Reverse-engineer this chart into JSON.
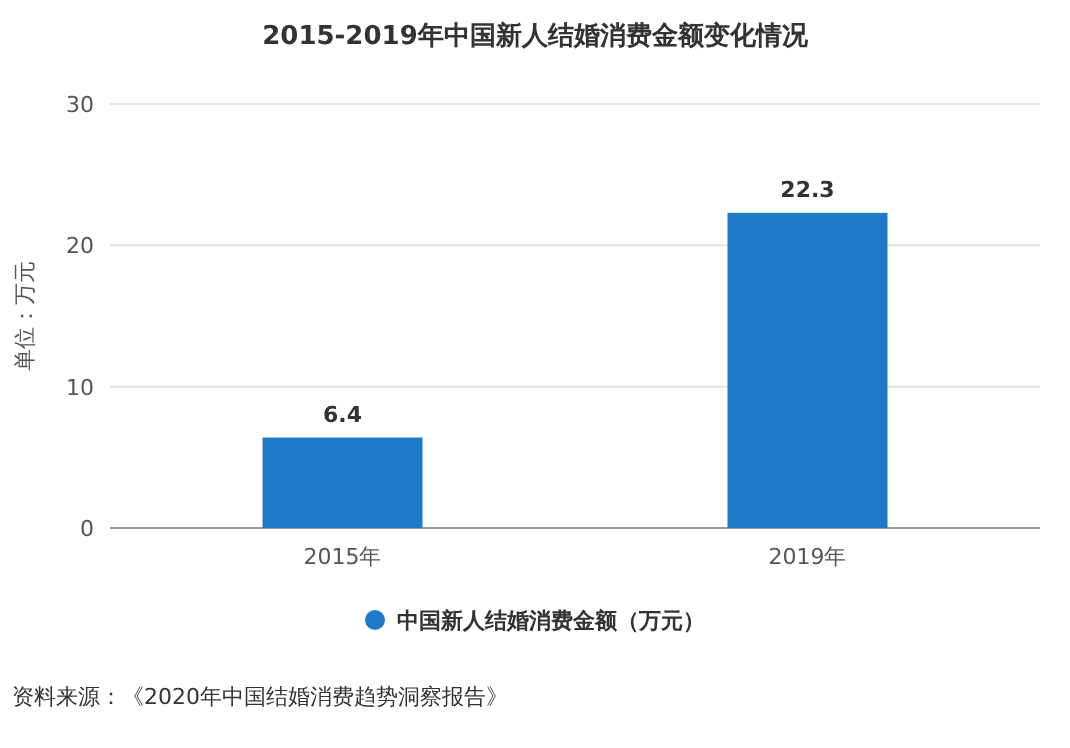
{
  "chart_data": {
    "type": "bar",
    "title": "2015-2019年中国新人结婚消费金额变化情况",
    "ylabel": "单位：万元",
    "categories": [
      "2015年",
      "2019年"
    ],
    "series": [
      {
        "name": "中国新人结婚消费金额（万元）",
        "color": "#1f7bc8",
        "values": [
          6.4,
          22.3
        ]
      }
    ],
    "ylim": [
      0,
      30
    ],
    "yticks": [
      0,
      10,
      20,
      30
    ],
    "grid": "y",
    "legend": "bottom",
    "data_labels": true,
    "annotations": [
      "资料来源：《2020年中国结婚消费趋势洞察报告》"
    ]
  }
}
